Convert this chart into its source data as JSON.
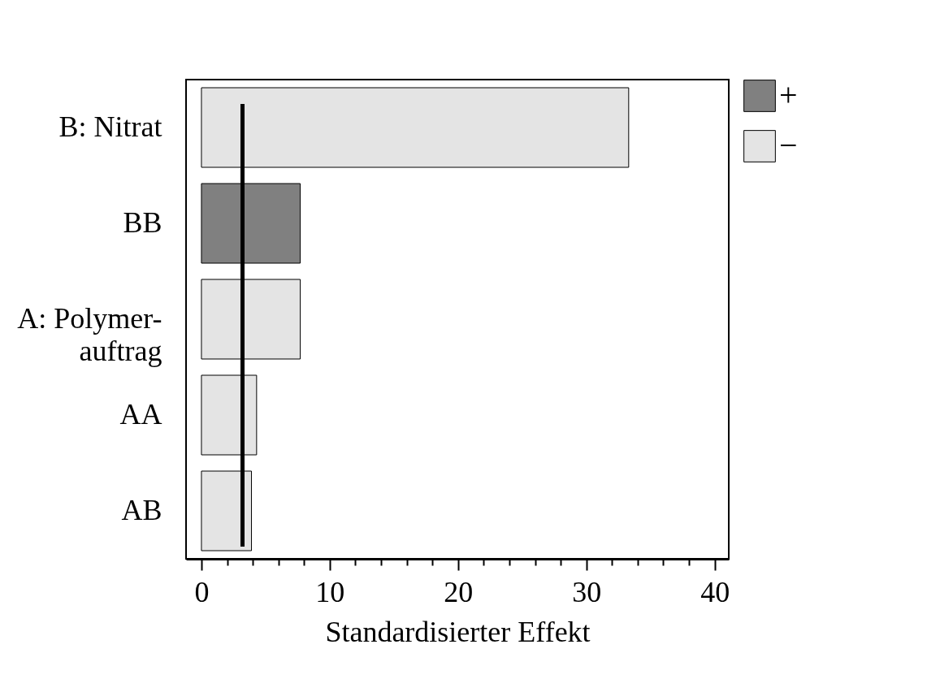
{
  "chart_data": {
    "type": "bar",
    "orientation": "horizontal",
    "categories": [
      "B: Nitrat",
      "BB",
      "A: Polymer-\nauftrag",
      "AA",
      "AB"
    ],
    "series": [
      {
        "name": "+",
        "color": "#808080",
        "values": [
          null,
          7.7,
          null,
          null,
          null
        ]
      },
      {
        "name": "−",
        "color": "#e4e4e4",
        "values": [
          33.3,
          null,
          7.7,
          4.3,
          3.9
        ]
      }
    ],
    "xlabel": "Standardisierter Effekt",
    "xlim": [
      -1.2,
      41.1
    ],
    "xticks": [
      0,
      {
        "value": 2,
        "label": null
      },
      {
        "value": 4,
        "label": null
      },
      {
        "value": 6,
        "label": null
      },
      {
        "value": 8,
        "label": null
      },
      10,
      {
        "value": 12,
        "label": null
      },
      {
        "value": 14,
        "label": null
      },
      {
        "value": 16,
        "label": null
      },
      {
        "value": 18,
        "label": null
      },
      20,
      {
        "value": 22,
        "label": null
      },
      {
        "value": 24,
        "label": null
      },
      {
        "value": 26,
        "label": null
      },
      {
        "value": 28,
        "label": null
      },
      30,
      {
        "value": 32,
        "label": null
      },
      {
        "value": 34,
        "label": null
      },
      {
        "value": 36,
        "label": null
      },
      {
        "value": 38,
        "label": null
      },
      40
    ],
    "ref_lines": [
      {
        "axis": "x",
        "value": 3.2
      }
    ],
    "grid": false,
    "legend": "top right"
  }
}
